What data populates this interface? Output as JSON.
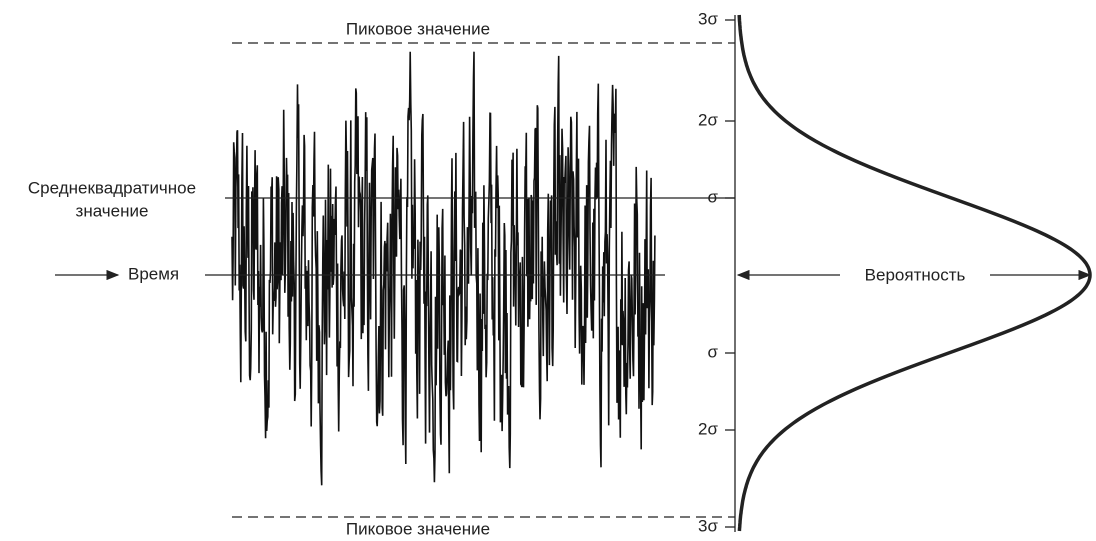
{
  "peak_top": "Пиковое значение",
  "peak_bottom": "Пиковое значение",
  "rms_label": {
    "lines": [
      "Среднеквадратичное",
      "значение"
    ]
  },
  "time_label": "Время",
  "probability_label": "Вероятность",
  "sigma_ticks": [
    "3σ",
    "2σ",
    "σ",
    "σ",
    "2σ",
    "3σ"
  ]
}
